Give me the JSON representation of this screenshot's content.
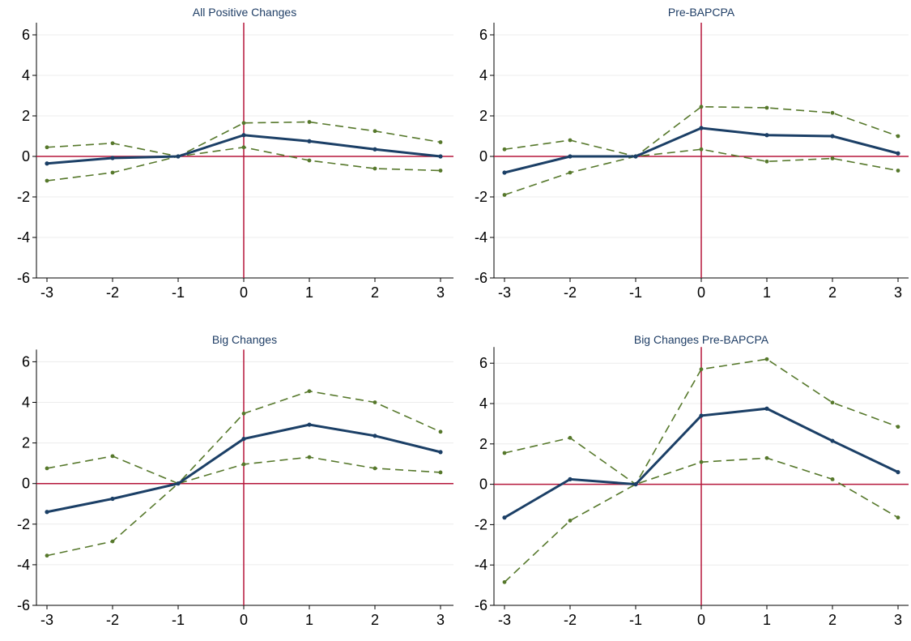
{
  "colors": {
    "estimate": "#1b3f66",
    "confidence_band": "#56782b",
    "reference_lines": "#b5173b",
    "title": "#1f3e66",
    "grid": "#ececec"
  },
  "chart_data": [
    {
      "type": "line",
      "title": "All Positive Changes",
      "x": [
        -3,
        -2,
        -1,
        0,
        1,
        2,
        3
      ],
      "xticks": [
        "-3",
        "-2",
        "-1",
        "0",
        "1",
        "2",
        "3"
      ],
      "yticks": [
        "-6",
        "-4",
        "-2",
        "0",
        "2",
        "4",
        "6"
      ],
      "ylim": [
        -6,
        6.6
      ],
      "grid": true,
      "reference_lines": {
        "x": 0,
        "y": 0
      },
      "series": [
        {
          "role": "estimate",
          "style": "solid",
          "values": [
            -0.35,
            -0.08,
            0.0,
            1.05,
            0.75,
            0.35,
            0.0
          ]
        },
        {
          "role": "upper",
          "style": "dashed",
          "values": [
            0.45,
            0.65,
            0.0,
            1.65,
            1.7,
            1.25,
            0.7
          ]
        },
        {
          "role": "lower",
          "style": "dashed",
          "values": [
            -1.2,
            -0.8,
            0.0,
            0.45,
            -0.2,
            -0.6,
            -0.7
          ]
        }
      ]
    },
    {
      "type": "line",
      "title": "Pre-BAPCPA",
      "x": [
        -3,
        -2,
        -1,
        0,
        1,
        2,
        3
      ],
      "xticks": [
        "-3",
        "-2",
        "-1",
        "0",
        "1",
        "2",
        "3"
      ],
      "yticks": [
        "-6",
        "-4",
        "-2",
        "0",
        "2",
        "4",
        "6"
      ],
      "ylim": [
        -6,
        6.6
      ],
      "grid": true,
      "reference_lines": {
        "x": 0,
        "y": 0
      },
      "series": [
        {
          "role": "estimate",
          "style": "solid",
          "values": [
            -0.8,
            0.0,
            0.0,
            1.4,
            1.05,
            1.0,
            0.15
          ]
        },
        {
          "role": "upper",
          "style": "dashed",
          "values": [
            0.35,
            0.8,
            0.0,
            2.45,
            2.4,
            2.15,
            1.0
          ]
        },
        {
          "role": "lower",
          "style": "dashed",
          "values": [
            -1.9,
            -0.8,
            0.0,
            0.35,
            -0.25,
            -0.1,
            -0.7
          ]
        }
      ]
    },
    {
      "type": "line",
      "title": "Big Changes",
      "x": [
        -3,
        -2,
        -1,
        0,
        1,
        2,
        3
      ],
      "xticks": [
        "-3",
        "-2",
        "-1",
        "0",
        "1",
        "2",
        "3"
      ],
      "yticks": [
        "-6",
        "-4",
        "-2",
        "0",
        "2",
        "4",
        "6"
      ],
      "ylim": [
        -6,
        6.6
      ],
      "grid": true,
      "reference_lines": {
        "x": 0,
        "y": 0
      },
      "series": [
        {
          "role": "estimate",
          "style": "solid",
          "values": [
            -1.4,
            -0.75,
            0.0,
            2.2,
            2.9,
            2.35,
            1.55
          ]
        },
        {
          "role": "upper",
          "style": "dashed",
          "values": [
            0.75,
            1.35,
            0.0,
            3.45,
            4.55,
            4.0,
            2.55
          ]
        },
        {
          "role": "lower",
          "style": "dashed",
          "values": [
            -3.55,
            -2.85,
            0.0,
            0.95,
            1.3,
            0.75,
            0.55
          ]
        }
      ]
    },
    {
      "type": "line",
      "title": "Big Changes Pre-BAPCPA",
      "x": [
        -3,
        -2,
        -1,
        0,
        1,
        2,
        3
      ],
      "xticks": [
        "-3",
        "-2",
        "-1",
        "0",
        "1",
        "2",
        "3"
      ],
      "yticks": [
        "-6",
        "-4",
        "-2",
        "0",
        "2",
        "4",
        "6"
      ],
      "ylim": [
        -6,
        6.8
      ],
      "grid": true,
      "reference_lines": {
        "x": 0,
        "y": 0
      },
      "series": [
        {
          "role": "estimate",
          "style": "solid",
          "values": [
            -1.65,
            0.25,
            0.0,
            3.4,
            3.75,
            2.15,
            0.6
          ]
        },
        {
          "role": "upper",
          "style": "dashed",
          "values": [
            1.55,
            2.3,
            0.0,
            5.7,
            6.2,
            4.05,
            2.85
          ]
        },
        {
          "role": "lower",
          "style": "dashed",
          "values": [
            -4.85,
            -1.8,
            0.0,
            1.1,
            1.3,
            0.25,
            -1.65
          ]
        }
      ]
    }
  ]
}
